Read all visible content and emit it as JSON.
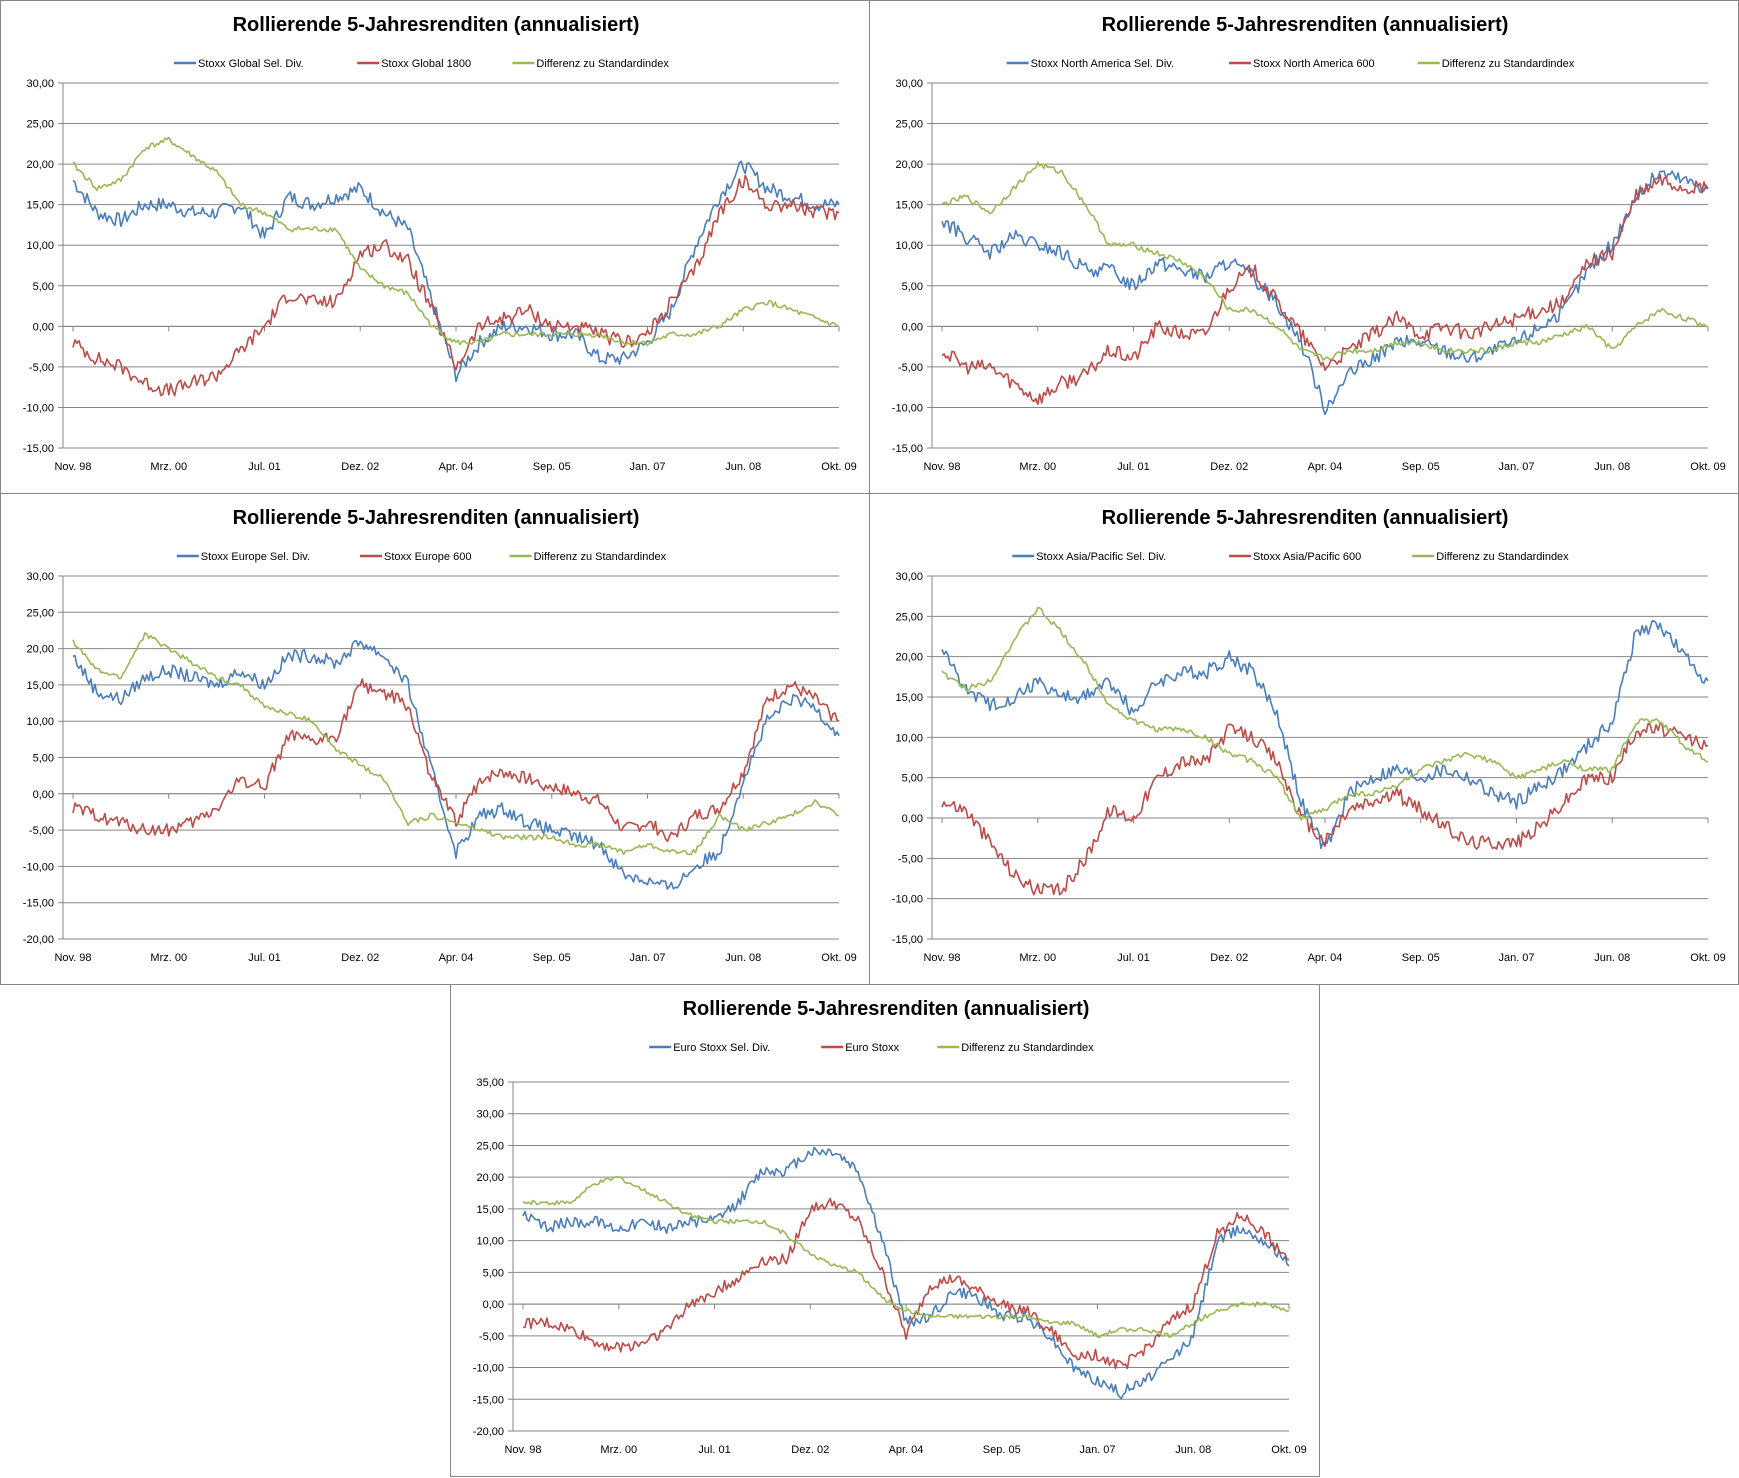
{
  "colors": {
    "blue": "#4a7ebb",
    "red": "#be4b48",
    "green": "#98b954"
  },
  "chart_data": [
    {
      "type": "line",
      "title": "Rollierende 5-Jahresrenditen (annualisiert)",
      "xlabel": "",
      "ylabel": "",
      "x_ticks": [
        "Nov. 98",
        "Mrz. 00",
        "Jul. 01",
        "Dez. 02",
        "Apr. 04",
        "Sep. 05",
        "Jan. 07",
        "Jun. 08",
        "Okt. 09"
      ],
      "y_ticks": [
        "30,00",
        "25,00",
        "20,00",
        "15,00",
        "10,00",
        "5,00",
        "0,00",
        "-5,00",
        "-10,00",
        "-15,00"
      ],
      "ylim": [
        -15,
        30
      ],
      "grid": true,
      "legend": "top",
      "series": [
        {
          "name": "Stoxx Global Sel. Div.",
          "color": "blue",
          "values": [
            18,
            14,
            13,
            15,
            15,
            14,
            14,
            15,
            11,
            16,
            15,
            16,
            17,
            14,
            12,
            3,
            -6,
            -2,
            0,
            0,
            -1,
            -1,
            -4,
            -4,
            -2,
            2,
            10,
            16,
            20,
            17,
            16,
            15,
            15
          ]
        },
        {
          "name": "Stoxx Global 1800",
          "color": "red",
          "values": [
            -2,
            -4,
            -5,
            -7,
            -8,
            -7,
            -6,
            -3,
            0,
            4,
            3,
            3,
            9,
            10,
            8,
            2,
            -5,
            0,
            1,
            2,
            0,
            0,
            -1,
            -2,
            -1,
            3,
            7,
            14,
            18,
            15,
            15,
            14,
            14
          ]
        },
        {
          "name": "Differenz zu Standardindex",
          "color": "green",
          "values": [
            20,
            17,
            18,
            22,
            23,
            21,
            19,
            15,
            14,
            12,
            12,
            12,
            7,
            5,
            4,
            0,
            -2,
            -2,
            -1,
            -1,
            -1,
            -1,
            -1,
            -2,
            -2,
            -1,
            -1,
            0,
            2,
            3,
            2,
            1,
            0
          ]
        }
      ]
    },
    {
      "type": "line",
      "title": "Rollierende 5-Jahresrenditen (annualisiert)",
      "xlabel": "",
      "ylabel": "",
      "x_ticks": [
        "Nov. 98",
        "Mrz. 00",
        "Jul. 01",
        "Dez. 02",
        "Apr. 04",
        "Sep. 05",
        "Jan. 07",
        "Jun. 08",
        "Okt. 09"
      ],
      "y_ticks": [
        "30,00",
        "25,00",
        "20,00",
        "15,00",
        "10,00",
        "5,00",
        "0,00",
        "-5,00",
        "-10,00",
        "-15,00"
      ],
      "ylim": [
        -15,
        30
      ],
      "grid": true,
      "legend": "top",
      "series": [
        {
          "name": "Stoxx North America Sel. Div.",
          "color": "blue",
          "values": [
            13,
            11,
            9,
            11,
            10,
            9,
            7,
            7,
            5,
            8,
            7,
            6,
            8,
            6,
            3,
            -2,
            -10,
            -6,
            -4,
            -2,
            -2,
            -3,
            -4,
            -3,
            -2,
            0,
            2,
            7,
            10,
            16,
            19,
            18,
            17
          ]
        },
        {
          "name": "Stoxx North America 600",
          "color": "red",
          "values": [
            -3,
            -5,
            -5,
            -7,
            -9,
            -7,
            -6,
            -3,
            -4,
            0,
            -1,
            -1,
            5,
            7,
            3,
            -1,
            -5,
            -3,
            -1,
            1,
            -1,
            0,
            -1,
            0,
            1,
            2,
            3,
            8,
            9,
            16,
            18,
            17,
            17
          ]
        },
        {
          "name": "Differenz zu Standardindex",
          "color": "green",
          "values": [
            15,
            16,
            14,
            17,
            20,
            19,
            15,
            10,
            10,
            9,
            8,
            6,
            2,
            2,
            0,
            -3,
            -4,
            -3,
            -3,
            -2,
            -2,
            -3,
            -3,
            -3,
            -2,
            -2,
            -1,
            0,
            -3,
            0,
            2,
            1,
            0
          ]
        }
      ]
    },
    {
      "type": "line",
      "title": "Rollierende 5-Jahresrenditen (annualisiert)",
      "xlabel": "",
      "ylabel": "",
      "x_ticks": [
        "Nov. 98",
        "Mrz. 00",
        "Jul. 01",
        "Dez. 02",
        "Apr. 04",
        "Sep. 05",
        "Jan. 07",
        "Jun. 08",
        "Okt. 09"
      ],
      "y_ticks": [
        "30,00",
        "25,00",
        "20,00",
        "15,00",
        "10,00",
        "5,00",
        "0,00",
        "-5,00",
        "-10,00",
        "-15,00",
        "-20,00"
      ],
      "ylim": [
        -20,
        30
      ],
      "grid": true,
      "legend": "top",
      "series": [
        {
          "name": "Stoxx Europe Sel. Div.",
          "color": "blue",
          "values": [
            19,
            14,
            13,
            16,
            17,
            16,
            15,
            17,
            15,
            19,
            19,
            18,
            21,
            19,
            15,
            3,
            -8,
            -3,
            -2,
            -4,
            -5,
            -6,
            -7,
            -11,
            -12,
            -13,
            -10,
            -8,
            2,
            10,
            13,
            12,
            8
          ]
        },
        {
          "name": "Stoxx Europe 600",
          "color": "red",
          "values": [
            -2,
            -3,
            -4,
            -5,
            -5,
            -4,
            -2,
            2,
            1,
            8,
            7,
            8,
            15,
            14,
            12,
            2,
            -4,
            2,
            3,
            2,
            1,
            0,
            -1,
            -5,
            -4,
            -6,
            -3,
            -2,
            3,
            13,
            15,
            13,
            10
          ]
        },
        {
          "name": "Differenz zu Standardindex",
          "color": "green",
          "values": [
            21,
            17,
            16,
            22,
            20,
            18,
            16,
            15,
            12,
            11,
            10,
            6,
            4,
            2,
            -4,
            -3,
            -4,
            -5,
            -6,
            -6,
            -6,
            -7,
            -7,
            -8,
            -7,
            -8,
            -8,
            -3,
            -5,
            -4,
            -3,
            -1,
            -3
          ]
        }
      ]
    },
    {
      "type": "line",
      "title": "Rollierende 5-Jahresrenditen (annualisiert)",
      "xlabel": "",
      "ylabel": "",
      "x_ticks": [
        "Nov. 98",
        "Mrz. 00",
        "Jul. 01",
        "Dez. 02",
        "Apr. 04",
        "Sep. 05",
        "Jan. 07",
        "Jun. 08",
        "Okt. 09"
      ],
      "y_ticks": [
        "30,00",
        "25,00",
        "20,00",
        "15,00",
        "10,00",
        "5,00",
        "0,00",
        "-5,00",
        "-10,00",
        "-15,00"
      ],
      "ylim": [
        -15,
        30
      ],
      "grid": true,
      "legend": "top",
      "series": [
        {
          "name": "Stoxx Asia/Pacific Sel. Div.",
          "color": "blue",
          "values": [
            21,
            16,
            14,
            15,
            17,
            15,
            15,
            17,
            13,
            17,
            18,
            18,
            20,
            18,
            13,
            2,
            -4,
            3,
            5,
            6,
            5,
            6,
            5,
            3,
            2,
            4,
            6,
            9,
            12,
            23,
            24,
            20,
            17
          ]
        },
        {
          "name": "Stoxx Asia/Pacific 600",
          "color": "red",
          "values": [
            2,
            1,
            -3,
            -7,
            -9,
            -9,
            -5,
            1,
            0,
            5,
            7,
            7,
            11,
            10,
            7,
            0,
            -3,
            1,
            2,
            3,
            1,
            -1,
            -3,
            -3,
            -3,
            -1,
            2,
            5,
            5,
            11,
            11,
            10,
            9
          ]
        },
        {
          "name": "Differenz zu Standardindex",
          "color": "green",
          "values": [
            18,
            16,
            17,
            22,
            26,
            23,
            19,
            14,
            12,
            11,
            11,
            10,
            8,
            7,
            5,
            0,
            1,
            3,
            3,
            4,
            6,
            7,
            8,
            7,
            5,
            6,
            7,
            6,
            6,
            12,
            12,
            9,
            7
          ]
        }
      ]
    },
    {
      "type": "line",
      "title": "Rollierende 5-Jahresrenditen (annualisiert)",
      "xlabel": "",
      "ylabel": "",
      "x_ticks": [
        "Nov. 98",
        "Mrz. 00",
        "Jul. 01",
        "Dez. 02",
        "Apr. 04",
        "Sep. 05",
        "Jan. 07",
        "Jun. 08",
        "Okt. 09"
      ],
      "y_ticks": [
        "35,00",
        "30,00",
        "25,00",
        "20,00",
        "15,00",
        "10,00",
        "5,00",
        "0,00",
        "-5,00",
        "-10,00",
        "-15,00",
        "-20,00"
      ],
      "ylim": [
        -20,
        35
      ],
      "grid": true,
      "legend": "top",
      "series": [
        {
          "name": "Euro Stoxx Sel. Div.",
          "color": "blue",
          "values": [
            14,
            12,
            13,
            13,
            12,
            13,
            12,
            13,
            13,
            16,
            21,
            21,
            24,
            24,
            21,
            10,
            -3,
            -2,
            2,
            1,
            -2,
            -2,
            -5,
            -10,
            -12,
            -14,
            -12,
            -9,
            -5,
            10,
            12,
            10,
            6
          ]
        },
        {
          "name": "Euro Stoxx",
          "color": "red",
          "values": [
            -3,
            -3,
            -4,
            -6,
            -7,
            -6,
            -4,
            0,
            2,
            4,
            7,
            7,
            15,
            16,
            13,
            5,
            -5,
            3,
            4,
            2,
            0,
            -1,
            -4,
            -8,
            -8,
            -10,
            -7,
            -3,
            0,
            11,
            14,
            11,
            7
          ]
        },
        {
          "name": "Differenz zu Standardindex",
          "color": "green",
          "values": [
            16,
            16,
            16,
            19,
            20,
            18,
            16,
            14,
            13,
            13,
            13,
            11,
            8,
            6,
            5,
            1,
            -1,
            -2,
            -2,
            -2,
            -2,
            -2,
            -3,
            -3,
            -5,
            -4,
            -4,
            -5,
            -3,
            -1,
            0,
            0,
            -1
          ]
        }
      ]
    }
  ]
}
